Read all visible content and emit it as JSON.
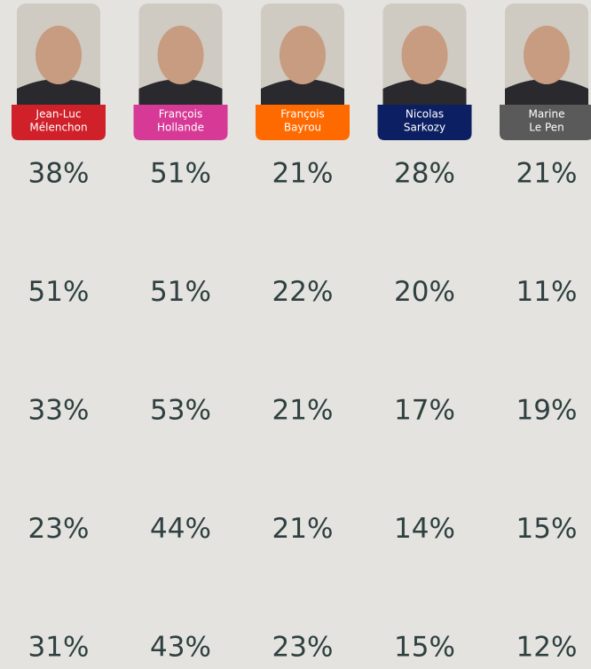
{
  "candidates": [
    {
      "name": [
        "Jean-Luc",
        "Mélenchon"
      ],
      "color": "#d0202a"
    },
    {
      "name": [
        "François",
        "Hollande"
      ],
      "color": "#d63a96"
    },
    {
      "name": [
        "François",
        "Bayrou"
      ],
      "color": "#ff6a00"
    },
    {
      "name": [
        "Nicolas",
        "Sarkozy"
      ],
      "color": "#0d1f63"
    },
    {
      "name": [
        "Marine",
        "Le Pen"
      ],
      "color": "#5a5a5a"
    }
  ],
  "table": {
    "rows": [
      [
        "38%",
        "51%",
        "21%",
        "28%",
        "21%"
      ],
      [
        "51%",
        "51%",
        "22%",
        "20%",
        "11%"
      ],
      [
        "33%",
        "53%",
        "21%",
        "17%",
        "19%"
      ],
      [
        "23%",
        "44%",
        "21%",
        "14%",
        "15%"
      ],
      [
        "31%",
        "43%",
        "23%",
        "15%",
        "12%"
      ]
    ]
  }
}
